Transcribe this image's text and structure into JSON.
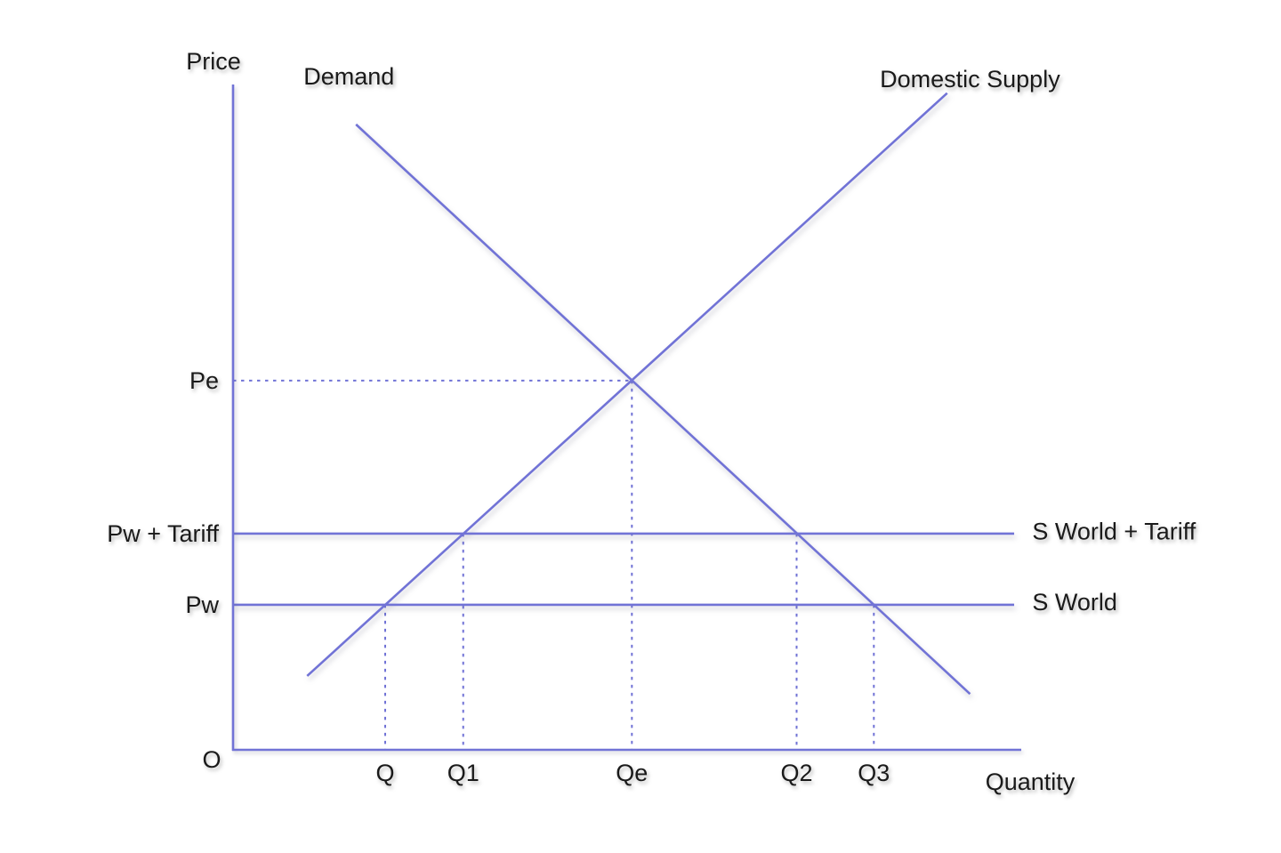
{
  "chart_data": {
    "type": "line",
    "xlabel": "Quantity",
    "ylabel": "Price",
    "origin_label": "O",
    "x_range": [
      0,
      100
    ],
    "y_range": [
      0,
      100
    ],
    "grid": false,
    "legend": "inline-labels",
    "line_color": "#7173d6",
    "text_color": "#1a1a1a",
    "series": [
      {
        "name": "demand",
        "label": "Demand",
        "points": [
          [
            15.6,
            94.0
          ],
          [
            93.5,
            8.4
          ]
        ],
        "label_pos": [
          14.7,
          100.0
        ],
        "label_align": "middle"
      },
      {
        "name": "domestic-supply",
        "label": "Domestic Supply",
        "points": [
          [
            9.4,
            11.1
          ],
          [
            90.6,
            98.7
          ]
        ],
        "label_pos": [
          93.5,
          99.6
        ],
        "label_align": "middle"
      },
      {
        "name": "world-supply-plus-tariff",
        "label": "S World + Tariff",
        "points": [
          [
            0,
            32.5
          ],
          [
            99.1,
            32.5
          ]
        ],
        "label_pos": [
          101.4,
          31.6
        ],
        "label_align": "start"
      },
      {
        "name": "world-supply",
        "label": "S World",
        "points": [
          [
            0,
            21.8
          ],
          [
            99.1,
            21.8
          ]
        ],
        "label_pos": [
          101.4,
          21.0
        ],
        "label_align": "start"
      }
    ],
    "price_marks": [
      {
        "label": "Pe",
        "value": 55.5
      },
      {
        "label": "Pw + Tariff",
        "value": 32.5
      },
      {
        "label": "Pw",
        "value": 21.8
      }
    ],
    "quantity_marks": [
      {
        "label": "Q",
        "value": 19.3
      },
      {
        "label": "Q1",
        "value": 29.2
      },
      {
        "label": "Qe",
        "value": 50.6
      },
      {
        "label": "Q2",
        "value": 71.5
      },
      {
        "label": "Q3",
        "value": 81.3
      }
    ],
    "equilibrium": {
      "price_label": "Pe",
      "quantity_label": "Qe",
      "price": 55.5,
      "quantity": 50.6
    },
    "world_price": 21.8,
    "world_price_plus_tariff": 32.5,
    "guides": {
      "horizontal": [
        {
          "y": 55.5,
          "x_from": 0,
          "x_to": 50.6,
          "label": "Pe"
        }
      ],
      "vertical": [
        {
          "x": 19.3,
          "y_from": 0,
          "y_to": 21.8,
          "label": "Q"
        },
        {
          "x": 29.2,
          "y_from": 0,
          "y_to": 32.5,
          "label": "Q1"
        },
        {
          "x": 50.6,
          "y_from": 0,
          "y_to": 55.5,
          "label": "Qe"
        },
        {
          "x": 71.5,
          "y_from": 0,
          "y_to": 32.5,
          "label": "Q2"
        },
        {
          "x": 81.3,
          "y_from": 0,
          "y_to": 21.8,
          "label": "Q3"
        }
      ]
    }
  }
}
